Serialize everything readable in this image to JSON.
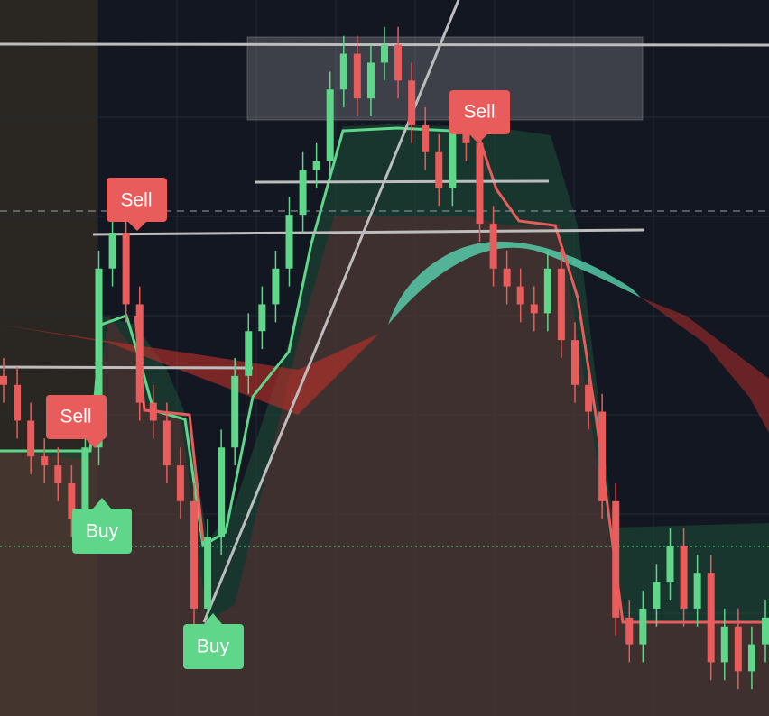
{
  "chart_data": {
    "type": "candlestick",
    "ylim": [
      0,
      800
    ],
    "up_color": "#5fd68a",
    "down_color": "#e85c5c",
    "open": [
      380,
      370,
      330,
      290,
      280,
      260,
      220,
      300,
      500,
      540,
      460,
      350,
      330,
      280,
      240,
      120,
      200,
      300,
      380,
      430,
      460,
      500,
      560,
      610,
      620,
      700,
      740,
      690,
      730,
      750,
      710,
      660,
      630,
      590,
      670,
      640,
      550,
      500,
      480,
      460,
      450,
      500,
      420,
      370,
      340,
      240,
      110,
      80,
      120,
      150,
      190,
      120,
      160,
      60,
      100,
      50,
      80
    ],
    "high": [
      400,
      390,
      350,
      310,
      300,
      280,
      320,
      520,
      560,
      560,
      480,
      370,
      350,
      300,
      260,
      220,
      320,
      400,
      450,
      480,
      520,
      580,
      630,
      640,
      720,
      760,
      760,
      750,
      770,
      770,
      730,
      680,
      650,
      690,
      690,
      660,
      570,
      520,
      500,
      480,
      520,
      520,
      440,
      390,
      360,
      260,
      130,
      140,
      170,
      210,
      210,
      180,
      180,
      120,
      120,
      100,
      130
    ],
    "low": [
      350,
      310,
      270,
      260,
      240,
      200,
      200,
      280,
      480,
      440,
      330,
      310,
      260,
      220,
      100,
      100,
      180,
      280,
      360,
      410,
      440,
      480,
      540,
      590,
      600,
      680,
      670,
      670,
      710,
      690,
      640,
      610,
      570,
      570,
      620,
      530,
      480,
      460,
      440,
      430,
      430,
      400,
      350,
      320,
      220,
      90,
      60,
      60,
      100,
      130,
      100,
      100,
      40,
      40,
      30,
      30,
      60
    ],
    "close": [
      370,
      330,
      290,
      280,
      260,
      220,
      300,
      500,
      540,
      460,
      350,
      330,
      280,
      240,
      120,
      200,
      300,
      380,
      430,
      460,
      500,
      560,
      610,
      620,
      700,
      740,
      690,
      730,
      750,
      710,
      660,
      630,
      590,
      670,
      640,
      550,
      500,
      480,
      460,
      450,
      500,
      420,
      370,
      340,
      240,
      110,
      80,
      120,
      150,
      190,
      120,
      160,
      60,
      100,
      50,
      80,
      110
    ],
    "annotations": [
      {
        "text": "Sell"
      },
      {
        "text": "Sell"
      },
      {
        "text": "Sell"
      },
      {
        "text": "Buy"
      },
      {
        "text": "Buy"
      }
    ]
  }
}
